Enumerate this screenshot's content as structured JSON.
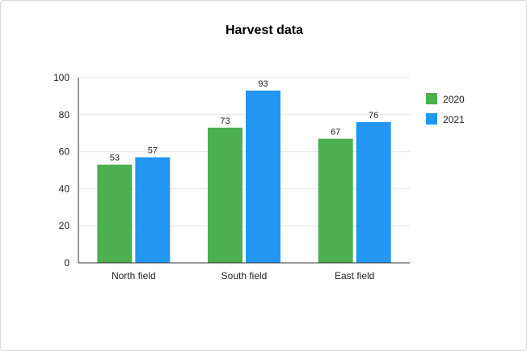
{
  "chart_data": {
    "type": "bar",
    "title": "Harvest data",
    "xlabel": "",
    "ylabel": "",
    "categories": [
      "North field",
      "South field",
      "East field"
    ],
    "series": [
      {
        "name": "2020",
        "values": [
          53,
          73,
          67
        ],
        "color": "#4caf50"
      },
      {
        "name": "2021",
        "values": [
          57,
          93,
          76
        ],
        "color": "#2196f3"
      }
    ],
    "ylim": [
      0,
      100
    ],
    "yticks": [
      0,
      20,
      40,
      60,
      80,
      100
    ],
    "data_labels": true,
    "grid": true,
    "legend_position": "right"
  }
}
